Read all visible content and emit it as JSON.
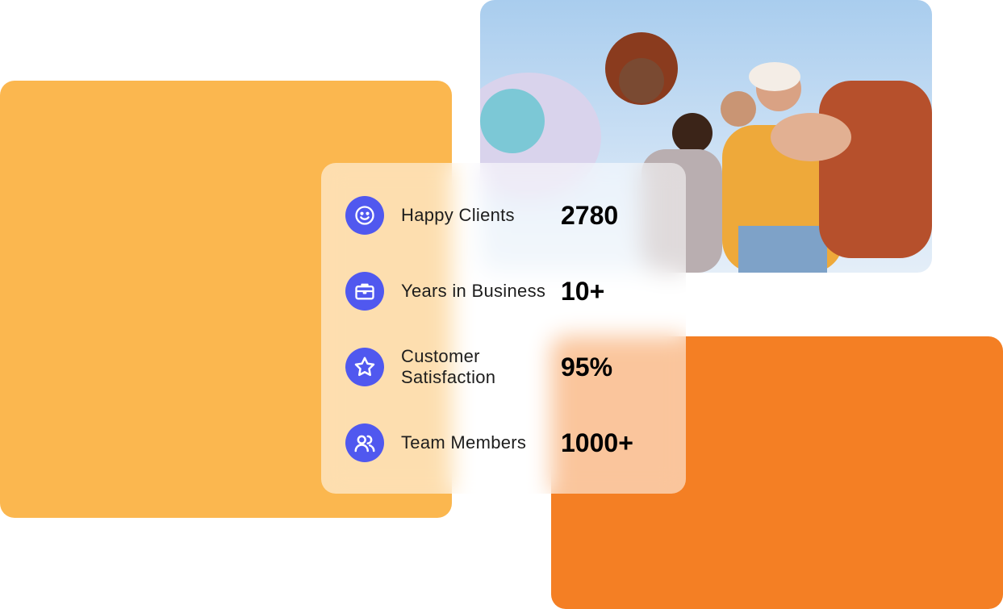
{
  "colors": {
    "yellow": "#FBB74F",
    "orange": "#F47F24",
    "icon_bg": "#5058EF"
  },
  "stats": [
    {
      "icon": "smiley-icon",
      "label": "Happy Clients",
      "value": "2780"
    },
    {
      "icon": "briefcase-icon",
      "label": "Years in Business",
      "value": "10+"
    },
    {
      "icon": "star-icon",
      "label": "Customer Satisfaction",
      "value": "95%"
    },
    {
      "icon": "users-icon",
      "label": "Team Members",
      "value": "1000+"
    }
  ]
}
